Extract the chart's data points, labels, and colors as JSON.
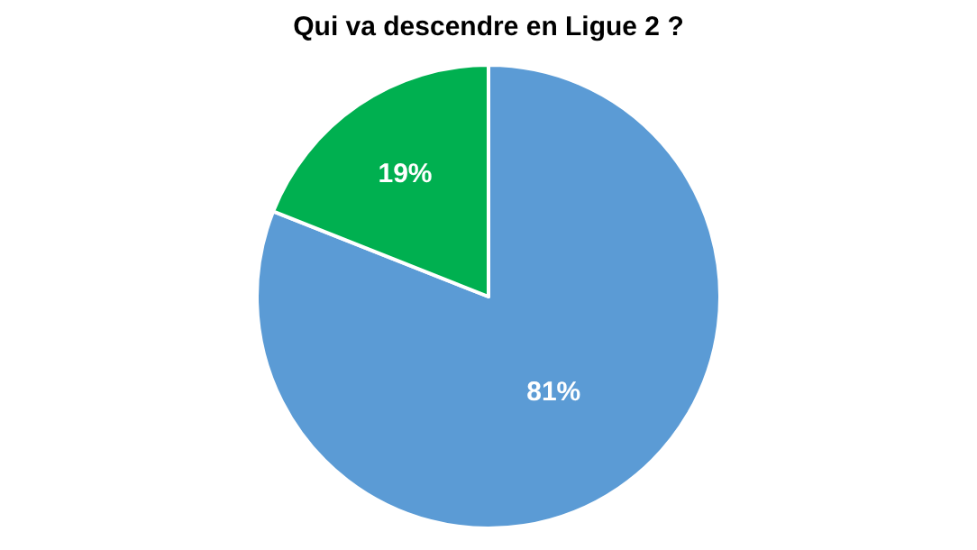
{
  "chart_data": {
    "type": "pie",
    "title": "Qui va descendre en Ligue 2 ?",
    "categories": [
      null,
      null
    ],
    "values": [
      81,
      19
    ],
    "colors": [
      "#5b9bd5",
      "#00b050"
    ],
    "value_labels": [
      "81%",
      "19%"
    ],
    "legend": false
  }
}
